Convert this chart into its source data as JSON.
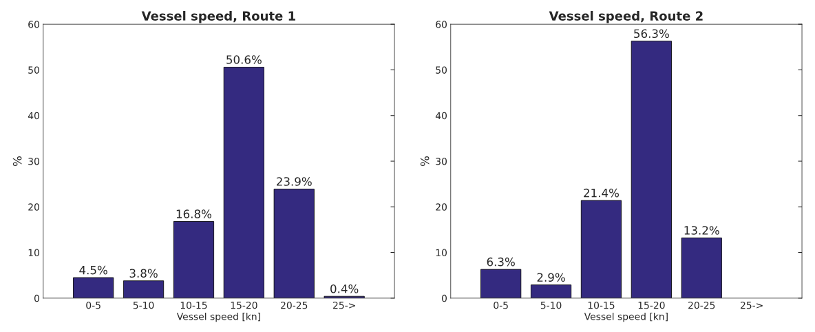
{
  "chart_data": [
    {
      "type": "bar",
      "title": "Vessel speed, Route 1",
      "xlabel": "Vessel speed [kn]",
      "ylabel": "%",
      "categories": [
        "0-5",
        "5-10",
        "10-15",
        "15-20",
        "20-25",
        "25->"
      ],
      "values": [
        4.5,
        3.8,
        16.8,
        50.6,
        23.9,
        0.4
      ],
      "value_labels": [
        "4.5%",
        "3.8%",
        "16.8%",
        "50.6%",
        "23.9%",
        "0.4%"
      ],
      "color": "#342a80",
      "ylim": [
        0,
        60
      ],
      "yticks": [
        0,
        10,
        20,
        30,
        40,
        50,
        60
      ],
      "grid": false,
      "legend": false
    },
    {
      "type": "bar",
      "title": "Vessel speed, Route 2",
      "xlabel": "Vessel speed [kn]",
      "ylabel": "%",
      "categories": [
        "0-5",
        "5-10",
        "10-15",
        "15-20",
        "20-25",
        "25->"
      ],
      "values": [
        6.3,
        2.9,
        21.4,
        56.3,
        13.2,
        null
      ],
      "value_labels": [
        "6.3%",
        "2.9%",
        "21.4%",
        "56.3%",
        "13.2%",
        null
      ],
      "color": "#342a80",
      "ylim": [
        0,
        60
      ],
      "yticks": [
        0,
        10,
        20,
        30,
        40,
        50,
        60
      ],
      "grid": false,
      "legend": false
    }
  ]
}
